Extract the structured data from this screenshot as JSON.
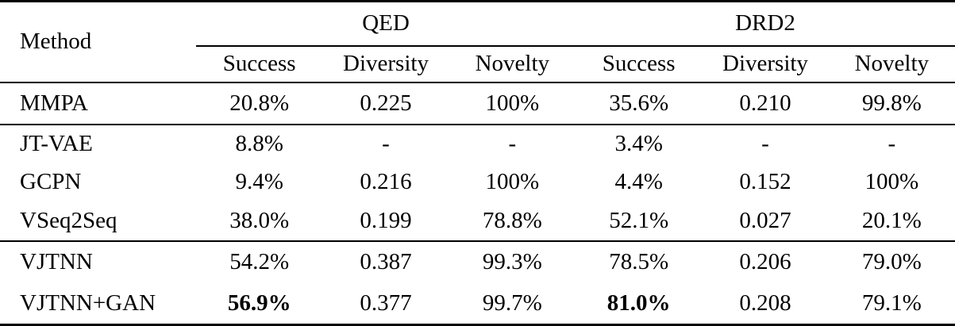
{
  "table": {
    "corner_header": "Method",
    "col_groups": [
      {
        "label": "QED"
      },
      {
        "label": "DRD2"
      }
    ],
    "sub_headers": [
      "Success",
      "Diversity",
      "Novelty",
      "Success",
      "Diversity",
      "Novelty"
    ],
    "rows": [
      {
        "method": "MMPA",
        "values": [
          "20.8%",
          "0.225",
          "100%",
          "35.6%",
          "0.210",
          "99.8%"
        ],
        "bold_cols": []
      },
      {
        "method": "JT-VAE",
        "values": [
          "8.8%",
          "-",
          "-",
          "3.4%",
          "-",
          "-"
        ],
        "bold_cols": []
      },
      {
        "method": "GCPN",
        "values": [
          "9.4%",
          "0.216",
          "100%",
          "4.4%",
          "0.152",
          "100%"
        ],
        "bold_cols": []
      },
      {
        "method": "VSeq2Seq",
        "values": [
          "38.0%",
          "0.199",
          "78.8%",
          "52.1%",
          "0.027",
          "20.1%"
        ],
        "bold_cols": []
      },
      {
        "method": "VJTNN",
        "values": [
          "54.2%",
          "0.387",
          "99.3%",
          "78.5%",
          "0.206",
          "79.0%"
        ],
        "bold_cols": []
      },
      {
        "method": "VJTNN+GAN",
        "values": [
          "56.9%",
          "0.377",
          "99.7%",
          "81.0%",
          "0.208",
          "79.1%"
        ],
        "bold_cols": [
          0,
          3
        ]
      }
    ],
    "colors": {
      "text": "#000000",
      "background": "#ffffff",
      "rule": "#000000"
    }
  }
}
